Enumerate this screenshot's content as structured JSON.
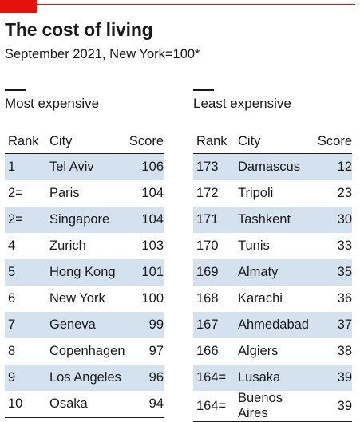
{
  "header": {
    "title": "The cost of living",
    "subtitle": "September 2021, New York=100*"
  },
  "chart_data": {
    "type": "table",
    "title": "The cost of living",
    "subtitle": "September 2021, New York=100*",
    "columns": [
      "Rank",
      "City",
      "Score"
    ],
    "tables": [
      {
        "name": "Most expensive",
        "rows": [
          {
            "rank": "1",
            "city": "Tel Aviv",
            "score": 106
          },
          {
            "rank": "2=",
            "city": "Paris",
            "score": 104
          },
          {
            "rank": "2=",
            "city": "Singapore",
            "score": 104
          },
          {
            "rank": "4",
            "city": "Zurich",
            "score": 103
          },
          {
            "rank": "5",
            "city": "Hong Kong",
            "score": 101
          },
          {
            "rank": "6",
            "city": "New York",
            "score": 100
          },
          {
            "rank": "7",
            "city": "Geneva",
            "score": 99
          },
          {
            "rank": "8",
            "city": "Copenhagen",
            "score": 97
          },
          {
            "rank": "9",
            "city": "Los Angeles",
            "score": 96
          },
          {
            "rank": "10",
            "city": "Osaka",
            "score": 94
          }
        ]
      },
      {
        "name": "Least expensive",
        "rows": [
          {
            "rank": "173",
            "city": "Damascus",
            "score": 12
          },
          {
            "rank": "172",
            "city": "Tripoli",
            "score": 23
          },
          {
            "rank": "171",
            "city": "Tashkent",
            "score": 30
          },
          {
            "rank": "170",
            "city": "Tunis",
            "score": 33
          },
          {
            "rank": "169",
            "city": "Almaty",
            "score": 35
          },
          {
            "rank": "168",
            "city": "Karachi",
            "score": 36
          },
          {
            "rank": "167",
            "city": "Ahmedabad",
            "score": 37
          },
          {
            "rank": "166",
            "city": "Algiers",
            "score": 38
          },
          {
            "rank": "164=",
            "city": "Lusaka",
            "score": 39
          },
          {
            "rank": "164=",
            "city": "Buenos Aires",
            "score": 39
          }
        ]
      }
    ]
  },
  "colors": {
    "accent": "#e3120b",
    "row_stripe": "#d3e2ee",
    "text": "#1a1a1a"
  }
}
